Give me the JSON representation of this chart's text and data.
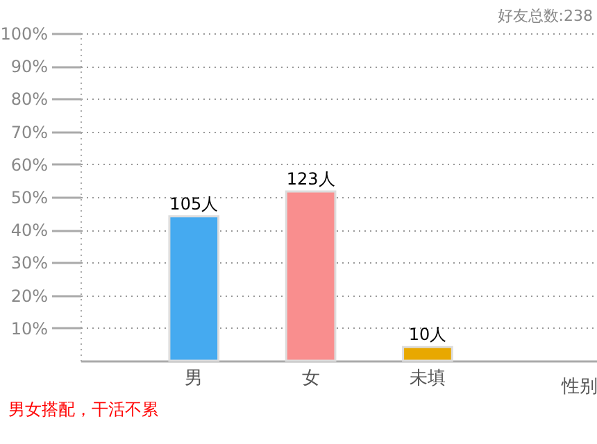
{
  "chart_data": {
    "type": "bar",
    "title": "好友总数:238",
    "xlabel": "性别",
    "categories": [
      "男",
      "女",
      "未填"
    ],
    "values": [
      44.1,
      51.7,
      4.2
    ],
    "colors": [
      "#45aaf0",
      "#f98e8e",
      "#e8a800"
    ],
    "ylim": [
      0,
      100
    ],
    "yticks": [
      {
        "value": 10,
        "label": "10%"
      },
      {
        "value": 20,
        "label": "20%"
      },
      {
        "value": 30,
        "label": "30%"
      },
      {
        "value": 40,
        "label": "40%"
      },
      {
        "value": 50,
        "label": "50%"
      },
      {
        "value": 60,
        "label": "60%"
      },
      {
        "value": 70,
        "label": "70%"
      },
      {
        "value": 80,
        "label": "80%"
      },
      {
        "value": 90,
        "label": "90%"
      },
      {
        "value": 100,
        "label": "100%"
      }
    ],
    "grid": "y",
    "annotations": [
      {
        "text": "105人",
        "x": "男",
        "y": 44.1
      },
      {
        "text": "123人",
        "x": "女",
        "y": 51.7
      },
      {
        "text": "10人",
        "x": "未填",
        "y": 4.2
      },
      "男女搭配，干活不累"
    ]
  }
}
